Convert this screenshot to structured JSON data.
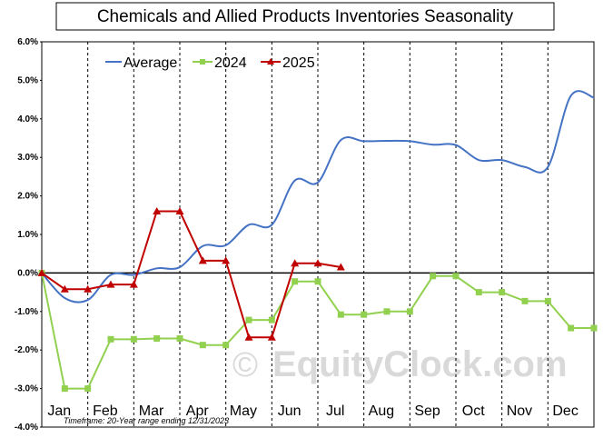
{
  "chart_data": {
    "type": "line",
    "title": "Chemicals and Allied Products Inventories Seasonality",
    "categories": [
      "Jan",
      "Feb",
      "Mar",
      "Apr",
      "May",
      "Jun",
      "Jul",
      "Aug",
      "Sep",
      "Oct",
      "Nov",
      "Dec"
    ],
    "y_ticks": [
      "6.0%",
      "5.0%",
      "4.0%",
      "3.0%",
      "2.0%",
      "1.0%",
      "0.0%",
      "-1.0%",
      "-2.0%",
      "-3.0%",
      "-4.0%"
    ],
    "ylim": [
      -4.0,
      6.0
    ],
    "grid": "vertical dashed month separators",
    "legend_placement": "top-left",
    "series": [
      {
        "name": "Average",
        "color": "#4472c4",
        "marker": "none",
        "x": [
          0,
          0.5,
          1,
          1.5,
          2,
          2.5,
          3,
          3.5,
          4,
          4.5,
          5,
          5.5,
          6,
          6.5,
          7,
          7.5,
          8,
          8.5,
          9,
          9.5,
          10,
          10.5,
          11,
          11.5,
          12
        ],
        "values": [
          0.0,
          -0.65,
          -0.7,
          -0.05,
          -0.05,
          0.12,
          0.15,
          0.7,
          0.72,
          1.25,
          1.25,
          2.4,
          2.35,
          3.45,
          3.42,
          3.43,
          3.42,
          3.33,
          3.32,
          2.93,
          2.93,
          2.75,
          2.75,
          4.6,
          4.55
        ]
      },
      {
        "name": "2024",
        "color": "#92d050",
        "marker": "square",
        "x": [
          0,
          0.5,
          1,
          1.5,
          2,
          2.5,
          3,
          3.5,
          4,
          4.5,
          5,
          5.5,
          6,
          6.5,
          7,
          7.5,
          8,
          8.5,
          9,
          9.5,
          10,
          10.5,
          11,
          11.5,
          12
        ],
        "values": [
          0.0,
          -3.0,
          -3.0,
          -1.72,
          -1.72,
          -1.7,
          -1.7,
          -1.87,
          -1.87,
          -1.22,
          -1.22,
          -0.22,
          -0.22,
          -1.08,
          -1.08,
          -1.0,
          -1.0,
          -0.08,
          -0.08,
          -0.5,
          -0.5,
          -0.73,
          -0.73,
          -1.43,
          -1.43
        ]
      },
      {
        "name": "2025",
        "color": "#c00000",
        "marker": "triangle",
        "x": [
          0,
          0.5,
          1,
          1.5,
          2,
          2.5,
          3,
          3.5,
          4,
          4.5,
          5,
          5.5,
          6,
          6.5
        ],
        "values": [
          0.0,
          -0.42,
          -0.42,
          -0.3,
          -0.3,
          1.6,
          1.6,
          0.32,
          0.32,
          -1.67,
          -1.67,
          0.25,
          0.25,
          0.15
        ]
      }
    ],
    "footnote": "Timeframe: 20-Year range ending 12/31/2023",
    "watermark": "EquityClock.com"
  }
}
